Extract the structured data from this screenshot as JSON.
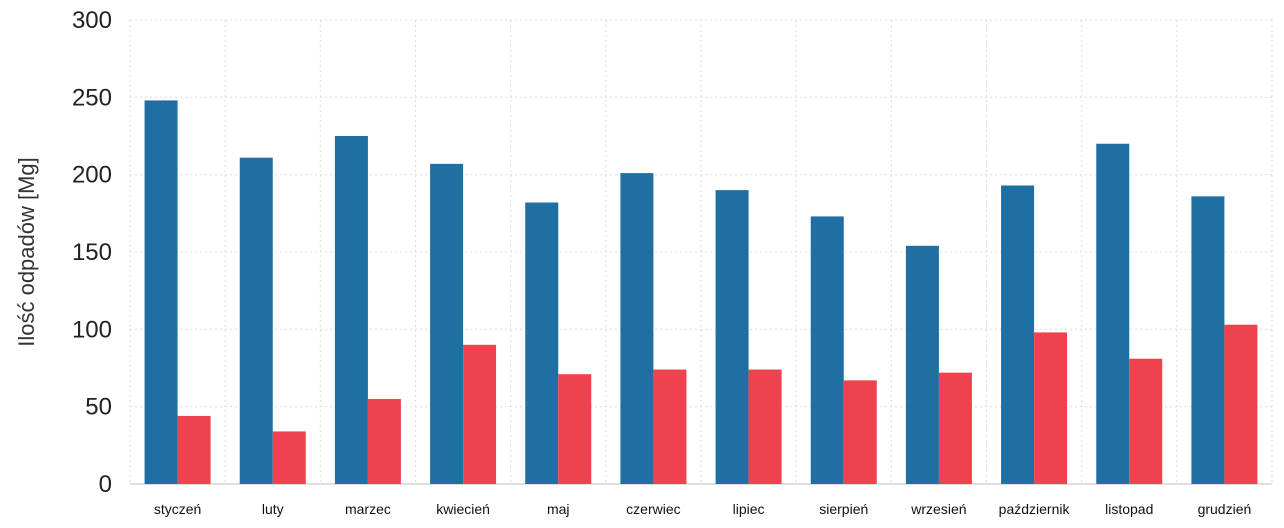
{
  "chart_data": {
    "type": "bar",
    "ylabel": "Ilość odpadów [Mg]",
    "xlabel": "",
    "ylim": [
      0,
      300
    ],
    "yticks": [
      0,
      50,
      100,
      150,
      200,
      250,
      300
    ],
    "grid": true,
    "categories": [
      "styczeń",
      "luty",
      "marzec",
      "kwiecień",
      "maj",
      "czerwiec",
      "lipiec",
      "sierpień",
      "wrzesień",
      "październik",
      "listopad",
      "grudzień"
    ],
    "series": [
      {
        "color": "#1f6fa3",
        "values": [
          248,
          211,
          225,
          207,
          182,
          201,
          190,
          173,
          154,
          193,
          220,
          186
        ]
      },
      {
        "color": "#f0424e",
        "values": [
          44,
          34,
          55,
          90,
          71,
          74,
          74,
          67,
          72,
          98,
          81,
          103
        ]
      }
    ]
  }
}
